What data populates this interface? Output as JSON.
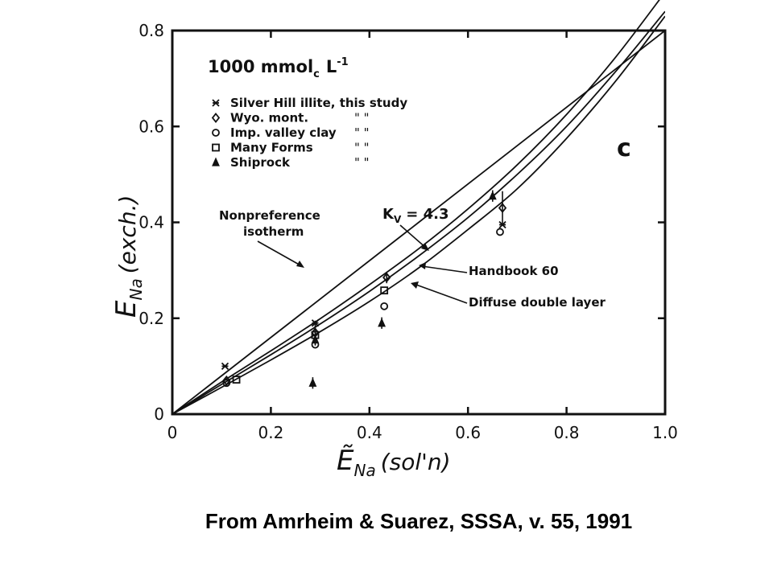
{
  "caption": "From Amrheim & Suarez, SSSA, v. 55, 1991",
  "colors": {
    "ink": "#111111",
    "background": "#ffffff"
  },
  "chart_data": {
    "type": "scatter",
    "panel_letter": "c",
    "concentration_label": "1000 mmol",
    "concentration_sub": "c",
    "concentration_unit": "L",
    "concentration_exp": "-1",
    "xlabel_main": "Ẽ",
    "xlabel_sub": "Na",
    "xlabel_paren": "(sol'n)",
    "ylabel_main": "E",
    "ylabel_sub": "Na",
    "ylabel_paren": "(exch.)",
    "xlim": [
      0,
      1.0
    ],
    "ylim": [
      0,
      0.8
    ],
    "x_ticks": [
      0,
      0.2,
      0.4,
      0.6,
      0.8,
      1.0
    ],
    "x_tick_labels": [
      "0",
      "0.2",
      "0.4",
      "0.6",
      "0.8",
      "1.0"
    ],
    "y_ticks": [
      0,
      0.2,
      0.4,
      0.6,
      0.8
    ],
    "y_tick_labels": [
      "0",
      "0.2",
      "0.4",
      "0.6",
      "0.8"
    ],
    "legend": [
      {
        "marker": "asterisk",
        "label": "Silver Hill illite, this study"
      },
      {
        "marker": "diamond",
        "label": "Wyo. mont.",
        "ditto": "\"     \""
      },
      {
        "marker": "circle",
        "label": "Imp. valley clay",
        "ditto": "\"     \""
      },
      {
        "marker": "square",
        "label": "Many Forms",
        "ditto": "\"     \""
      },
      {
        "marker": "triangle",
        "label": "Shiprock",
        "ditto": "\"     \""
      }
    ],
    "curves": [
      {
        "name": "Nonpreference isotherm",
        "x": [
          0,
          1.0
        ],
        "y": [
          0,
          0.8
        ]
      },
      {
        "name": "Kv = 4.3",
        "x": [
          0,
          0.1,
          0.2,
          0.3,
          0.4,
          0.5,
          0.6,
          0.7,
          0.8,
          0.9,
          1.0
        ],
        "y": [
          0,
          0.067,
          0.132,
          0.199,
          0.27,
          0.345,
          0.428,
          0.52,
          0.625,
          0.745,
          0.88
        ]
      },
      {
        "name": "Handbook 60",
        "x": [
          0,
          0.1,
          0.2,
          0.3,
          0.4,
          0.5,
          0.6,
          0.7,
          0.8,
          0.9,
          1.0
        ],
        "y": [
          0,
          0.062,
          0.124,
          0.188,
          0.256,
          0.33,
          0.41,
          0.5,
          0.6,
          0.715,
          0.84
        ]
      },
      {
        "name": "Diffuse double layer",
        "x": [
          0,
          0.1,
          0.2,
          0.3,
          0.4,
          0.5,
          0.6,
          0.7,
          0.8,
          0.9,
          1.0
        ],
        "y": [
          0,
          0.056,
          0.113,
          0.172,
          0.235,
          0.305,
          0.385,
          0.47,
          0.575,
          0.695,
          0.83
        ]
      }
    ],
    "points": [
      {
        "series": "Silver Hill illite, this study",
        "marker": "asterisk",
        "x": 0.107,
        "y": 0.1
      },
      {
        "series": "Silver Hill illite, this study",
        "marker": "asterisk",
        "x": 0.29,
        "y": 0.19
      },
      {
        "series": "Silver Hill illite, this study",
        "marker": "asterisk",
        "x": 0.67,
        "y": 0.395
      },
      {
        "series": "Wyo. mont.",
        "marker": "diamond",
        "x": 0.11,
        "y": 0.07
      },
      {
        "series": "Wyo. mont.",
        "marker": "diamond",
        "x": 0.29,
        "y": 0.17,
        "err": 0.025
      },
      {
        "series": "Wyo. mont.",
        "marker": "diamond",
        "x": 0.435,
        "y": 0.285,
        "err": 0.012
      },
      {
        "series": "Wyo. mont.",
        "marker": "diamond",
        "x": 0.67,
        "y": 0.43,
        "err": 0.035
      },
      {
        "series": "Imp. valley clay",
        "marker": "circle",
        "x": 0.11,
        "y": 0.065
      },
      {
        "series": "Imp. valley clay",
        "marker": "circle",
        "x": 0.29,
        "y": 0.145
      },
      {
        "series": "Imp. valley clay",
        "marker": "circle",
        "x": 0.43,
        "y": 0.225
      },
      {
        "series": "Imp. valley clay",
        "marker": "circle",
        "x": 0.665,
        "y": 0.38
      },
      {
        "series": "Many Forms",
        "marker": "square",
        "x": 0.13,
        "y": 0.072
      },
      {
        "series": "Many Forms",
        "marker": "square",
        "x": 0.29,
        "y": 0.165
      },
      {
        "series": "Many Forms",
        "marker": "square",
        "x": 0.43,
        "y": 0.258
      },
      {
        "series": "Shiprock",
        "marker": "triangle",
        "x": 0.285,
        "y": 0.065,
        "err": 0.012
      },
      {
        "series": "Shiprock",
        "marker": "triangle",
        "x": 0.29,
        "y": 0.155,
        "err": 0.012
      },
      {
        "series": "Shiprock",
        "marker": "triangle",
        "x": 0.425,
        "y": 0.19,
        "err": 0.012
      },
      {
        "series": "Shiprock",
        "marker": "triangle",
        "x": 0.65,
        "y": 0.455,
        "err": 0.012
      }
    ],
    "annotations": [
      {
        "id": "nonpref",
        "lines": [
          "Nonpreference",
          "isotherm"
        ]
      },
      {
        "id": "kv",
        "text": "K",
        "sub": "V",
        "rest": "= 4.3"
      },
      {
        "id": "handbook",
        "text": "Handbook 60"
      },
      {
        "id": "ddl",
        "text": "Diffuse double layer"
      }
    ]
  }
}
